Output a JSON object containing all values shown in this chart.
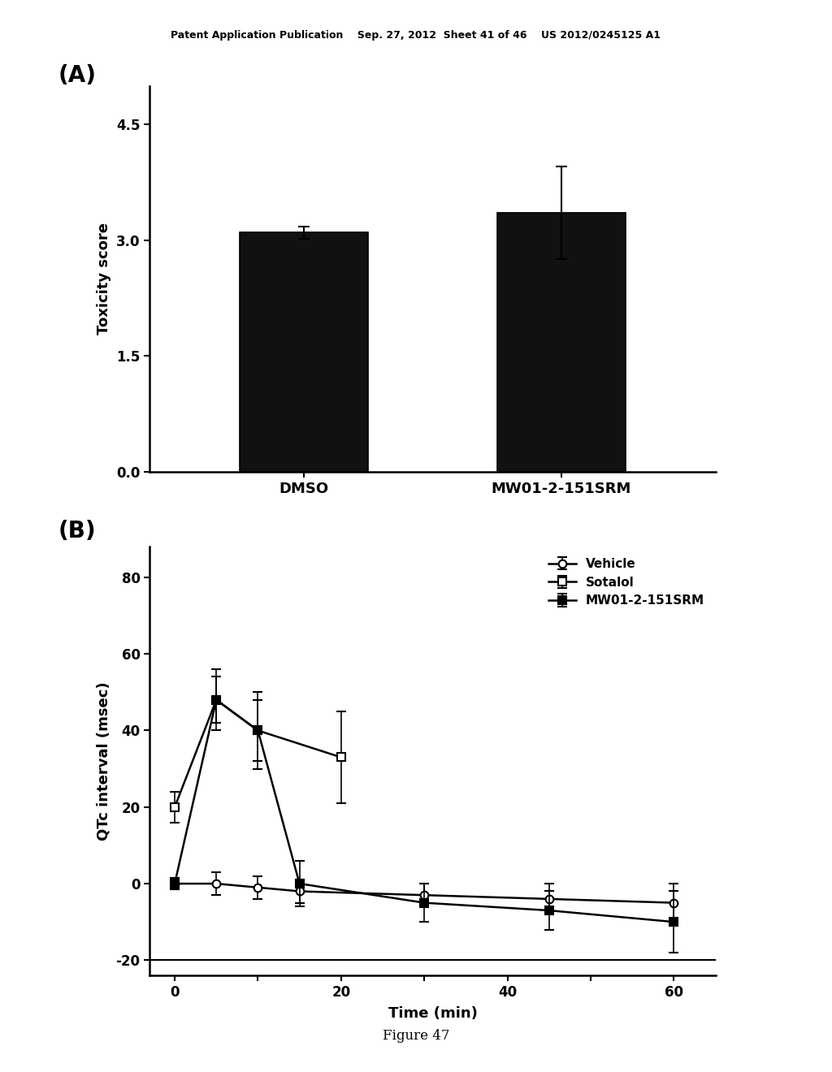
{
  "header_text": "Patent Application Publication    Sep. 27, 2012  Sheet 41 of 46    US 2012/0245125 A1",
  "figure_label": "Figure 47",
  "panel_A": {
    "label": "(A)",
    "categories": [
      "DMSO",
      "MW01-2-151SRM"
    ],
    "values": [
      3.1,
      3.35
    ],
    "errors": [
      0.08,
      0.6
    ],
    "bar_color": "#111111",
    "ylabel": "Toxicity score",
    "yticks": [
      0.0,
      1.5,
      3.0,
      4.5
    ],
    "ytick_labels": [
      "0.0",
      "1.5",
      "3.0",
      "4.5"
    ],
    "ylim": [
      0.0,
      5.0
    ],
    "bar_width": 0.5
  },
  "panel_B": {
    "label": "(B)",
    "xlabel": "Time (min)",
    "ylabel": "QTc interval (msec)",
    "yticks": [
      -20,
      0,
      20,
      40,
      60,
      80
    ],
    "ylim": [
      -24,
      88
    ],
    "xticks": [
      0,
      10,
      20,
      30,
      40,
      50,
      60
    ],
    "xtick_labels": [
      "0",
      "",
      "20",
      "",
      "40",
      "",
      "60"
    ],
    "xlim": [
      -3,
      65
    ],
    "vehicle": {
      "label": "Vehicle",
      "x": [
        0,
        5,
        10,
        15,
        30,
        45,
        60
      ],
      "y": [
        0,
        0,
        -1,
        -2,
        -3,
        -4,
        -5
      ],
      "yerr": [
        1.5,
        3,
        3,
        3,
        3,
        4,
        5
      ],
      "marker": "o"
    },
    "sotalol": {
      "label": "Sotalol",
      "x": [
        0,
        5,
        10,
        20
      ],
      "y": [
        20,
        48,
        40,
        33
      ],
      "yerr": [
        4,
        8,
        10,
        12
      ],
      "marker": "s"
    },
    "mw01": {
      "label": "MW01-2-151SRM",
      "x": [
        0,
        5,
        10,
        15,
        30,
        45,
        60
      ],
      "y": [
        0,
        48,
        40,
        0,
        -5,
        -7,
        -10
      ],
      "yerr": [
        1.5,
        6,
        8,
        6,
        5,
        5,
        8
      ],
      "marker": "s"
    }
  },
  "bg_color": "#ffffff",
  "text_color": "#000000"
}
